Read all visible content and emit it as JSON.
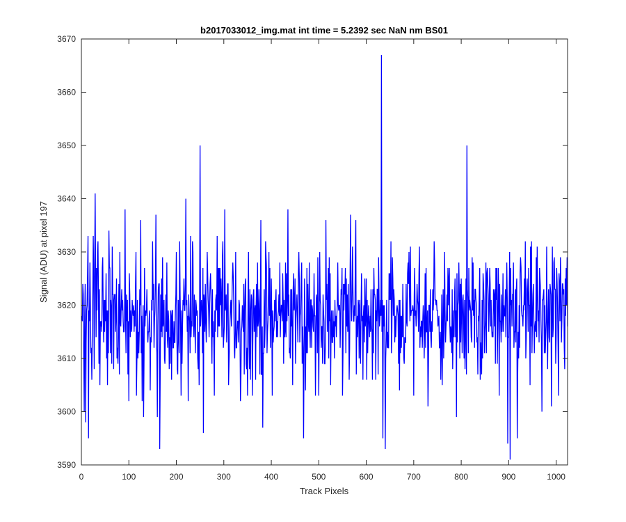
{
  "chart_data": {
    "type": "line",
    "title": "b2017033012_img.mat int time = 5.2392 sec  NaN nm BS01",
    "xlabel": "Track Pixels",
    "ylabel": "Signal (ADU) at pixel 197",
    "xlim": [
      0,
      1024
    ],
    "ylim": [
      3590,
      3670
    ],
    "xticks": [
      0,
      100,
      200,
      300,
      400,
      500,
      600,
      700,
      800,
      900,
      1000
    ],
    "yticks": [
      3590,
      3600,
      3610,
      3620,
      3630,
      3640,
      3650,
      3660,
      3670
    ],
    "grid": false,
    "box": true,
    "line_color": "#0000ff",
    "n_points": 1024,
    "baseline_mean": 3618,
    "notable_points": [
      {
        "x": 1,
        "y": 3618
      },
      {
        "x": 3,
        "y": 3624
      },
      {
        "x": 6,
        "y": 3600
      },
      {
        "x": 8,
        "y": 3624
      },
      {
        "x": 9,
        "y": 3598
      },
      {
        "x": 12,
        "y": 3620
      },
      {
        "x": 14,
        "y": 3633
      },
      {
        "x": 15,
        "y": 3595
      },
      {
        "x": 18,
        "y": 3628
      },
      {
        "x": 20,
        "y": 3611
      },
      {
        "x": 25,
        "y": 3633
      },
      {
        "x": 27,
        "y": 3608
      },
      {
        "x": 29,
        "y": 3641
      },
      {
        "x": 31,
        "y": 3614
      },
      {
        "x": 35,
        "y": 3632
      },
      {
        "x": 37,
        "y": 3609
      },
      {
        "x": 45,
        "y": 3629
      },
      {
        "x": 55,
        "y": 3605
      },
      {
        "x": 58,
        "y": 3634
      },
      {
        "x": 65,
        "y": 3631
      },
      {
        "x": 80,
        "y": 3607
      },
      {
        "x": 92,
        "y": 3638
      },
      {
        "x": 100,
        "y": 3602
      },
      {
        "x": 115,
        "y": 3630
      },
      {
        "x": 125,
        "y": 3636
      },
      {
        "x": 131,
        "y": 3599
      },
      {
        "x": 145,
        "y": 3604
      },
      {
        "x": 150,
        "y": 3632
      },
      {
        "x": 157,
        "y": 3637
      },
      {
        "x": 160,
        "y": 3599
      },
      {
        "x": 165,
        "y": 3593
      },
      {
        "x": 180,
        "y": 3628
      },
      {
        "x": 190,
        "y": 3606
      },
      {
        "x": 200,
        "y": 3630
      },
      {
        "x": 210,
        "y": 3603
      },
      {
        "x": 220,
        "y": 3640
      },
      {
        "x": 225,
        "y": 3602
      },
      {
        "x": 235,
        "y": 3630
      },
      {
        "x": 248,
        "y": 3605
      },
      {
        "x": 250,
        "y": 3650
      },
      {
        "x": 257,
        "y": 3596
      },
      {
        "x": 265,
        "y": 3630
      },
      {
        "x": 280,
        "y": 3603
      },
      {
        "x": 298,
        "y": 3632
      },
      {
        "x": 302,
        "y": 3638
      },
      {
        "x": 310,
        "y": 3605
      },
      {
        "x": 325,
        "y": 3630
      },
      {
        "x": 335,
        "y": 3602
      },
      {
        "x": 352,
        "y": 3630
      },
      {
        "x": 360,
        "y": 3603
      },
      {
        "x": 378,
        "y": 3636
      },
      {
        "x": 382,
        "y": 3597
      },
      {
        "x": 395,
        "y": 3630
      },
      {
        "x": 402,
        "y": 3603
      },
      {
        "x": 418,
        "y": 3628
      },
      {
        "x": 435,
        "y": 3638
      },
      {
        "x": 445,
        "y": 3605
      },
      {
        "x": 458,
        "y": 3630
      },
      {
        "x": 468,
        "y": 3595
      },
      {
        "x": 480,
        "y": 3628
      },
      {
        "x": 493,
        "y": 3603
      },
      {
        "x": 502,
        "y": 3630
      },
      {
        "x": 515,
        "y": 3636
      },
      {
        "x": 525,
        "y": 3605
      },
      {
        "x": 540,
        "y": 3628
      },
      {
        "x": 550,
        "y": 3603
      },
      {
        "x": 567,
        "y": 3637
      },
      {
        "x": 578,
        "y": 3636
      },
      {
        "x": 585,
        "y": 3610
      },
      {
        "x": 600,
        "y": 3625
      },
      {
        "x": 620,
        "y": 3606
      },
      {
        "x": 632,
        "y": 3667
      },
      {
        "x": 635,
        "y": 3595
      },
      {
        "x": 637,
        "y": 3616
      },
      {
        "x": 640,
        "y": 3593
      },
      {
        "x": 655,
        "y": 3629
      },
      {
        "x": 670,
        "y": 3604
      },
      {
        "x": 690,
        "y": 3630
      },
      {
        "x": 700,
        "y": 3603
      },
      {
        "x": 712,
        "y": 3631
      },
      {
        "x": 730,
        "y": 3601
      },
      {
        "x": 743,
        "y": 3632
      },
      {
        "x": 760,
        "y": 3605
      },
      {
        "x": 772,
        "y": 3627
      },
      {
        "x": 790,
        "y": 3599
      },
      {
        "x": 800,
        "y": 3625
      },
      {
        "x": 808,
        "y": 3608
      },
      {
        "x": 812,
        "y": 3650
      },
      {
        "x": 815,
        "y": 3611
      },
      {
        "x": 825,
        "y": 3628
      },
      {
        "x": 840,
        "y": 3606
      },
      {
        "x": 860,
        "y": 3627
      },
      {
        "x": 880,
        "y": 3603
      },
      {
        "x": 898,
        "y": 3594
      },
      {
        "x": 903,
        "y": 3591
      },
      {
        "x": 910,
        "y": 3628
      },
      {
        "x": 918,
        "y": 3595
      },
      {
        "x": 925,
        "y": 3629
      },
      {
        "x": 935,
        "y": 3632
      },
      {
        "x": 945,
        "y": 3605
      },
      {
        "x": 960,
        "y": 3631
      },
      {
        "x": 970,
        "y": 3600
      },
      {
        "x": 980,
        "y": 3631
      },
      {
        "x": 990,
        "y": 3601
      },
      {
        "x": 995,
        "y": 3628
      },
      {
        "x": 1005,
        "y": 3603
      },
      {
        "x": 1010,
        "y": 3623
      },
      {
        "x": 1018,
        "y": 3608
      },
      {
        "x": 1023,
        "y": 3629
      }
    ]
  }
}
